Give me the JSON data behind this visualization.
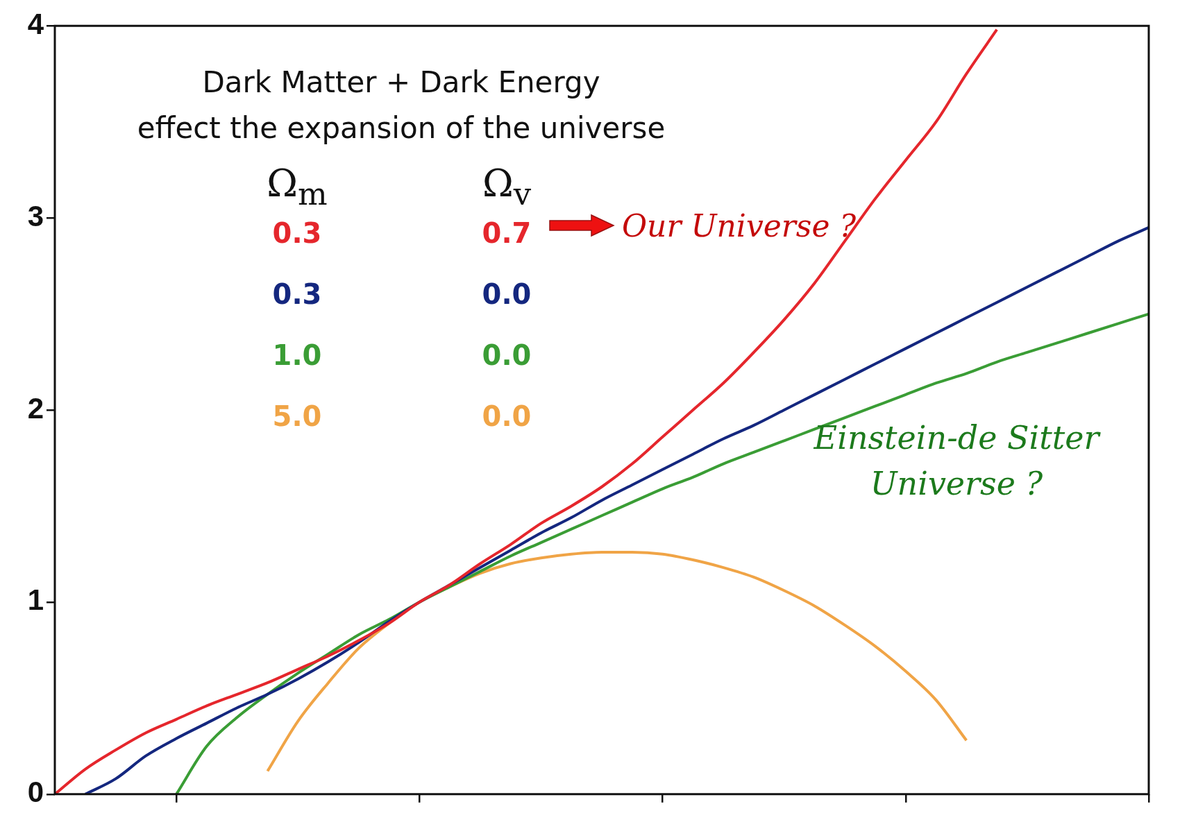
{
  "chart_data": {
    "type": "line",
    "title": "Dark Matter + Dark Energy\neffect the expansion of the universe",
    "categories": [
      null,
      null,
      null,
      null,
      null,
      null,
      null,
      null,
      null,
      null,
      null,
      null,
      null,
      null,
      null,
      null,
      null,
      null,
      null,
      null,
      null,
      null,
      null,
      null,
      null,
      null,
      null,
      null,
      null,
      null,
      null,
      null,
      null,
      null,
      null,
      null,
      null
    ],
    "series": [
      {
        "color": "#e5262c",
        "values": [
          0,
          0.13,
          0.23,
          0.32,
          0.39,
          0.46,
          0.52,
          0.58,
          0.65,
          0.72,
          0.8,
          0.89,
          1.0,
          1.09,
          1.2,
          1.3,
          1.41,
          1.5,
          1.6,
          1.72,
          1.86,
          2.0,
          2.14,
          2.3,
          2.47,
          2.66,
          2.88,
          3.1,
          3.3,
          3.5,
          3.75,
          3.98,
          null,
          null,
          null,
          null,
          null
        ]
      },
      {
        "color": "#14277f",
        "values": [
          null,
          0,
          0.08,
          0.2,
          0.29,
          0.37,
          0.45,
          0.52,
          0.6,
          0.69,
          0.79,
          0.9,
          1.0,
          1.09,
          1.18,
          1.27,
          1.36,
          1.44,
          1.53,
          1.61,
          1.69,
          1.77,
          1.85,
          1.92,
          2.0,
          2.08,
          2.16,
          2.24,
          2.32,
          2.4,
          2.48,
          2.56,
          2.64,
          2.72,
          2.8,
          2.88,
          2.95
        ]
      },
      {
        "color": "#3a9d35",
        "values": [
          null,
          null,
          null,
          null,
          0,
          0.25,
          0.4,
          0.52,
          0.63,
          0.73,
          0.83,
          0.91,
          1.0,
          1.08,
          1.16,
          1.24,
          1.31,
          1.38,
          1.45,
          1.52,
          1.59,
          1.65,
          1.72,
          1.78,
          1.84,
          1.9,
          1.96,
          2.02,
          2.08,
          2.14,
          2.19,
          2.25,
          2.3,
          2.35,
          2.4,
          2.45,
          2.5
        ]
      },
      {
        "color": "#f0a446",
        "values": [
          null,
          null,
          null,
          null,
          null,
          null,
          null,
          0.12,
          0.38,
          0.58,
          0.76,
          0.89,
          1.0,
          1.08,
          1.15,
          1.2,
          1.23,
          1.25,
          1.26,
          1.26,
          1.25,
          1.22,
          1.18,
          1.13,
          1.06,
          0.98,
          0.88,
          0.77,
          0.64,
          0.49,
          0.28,
          null,
          null,
          null,
          null,
          null,
          null
        ]
      }
    ],
    "ylim": [
      0,
      4
    ],
    "yticks": [
      0,
      1,
      2,
      3,
      4
    ],
    "grid": false,
    "legend": false,
    "tick_labels": "y",
    "annotations": [
      "Ω$_{m}$",
      "Ω$_{v}$",
      "0.3",
      "0.7",
      "0.3",
      "0.0",
      "1.0",
      "0.0",
      "5.0",
      "0.0",
      "Our Universe ?",
      "Einstein-de Sitter Universe ?"
    ]
  }
}
